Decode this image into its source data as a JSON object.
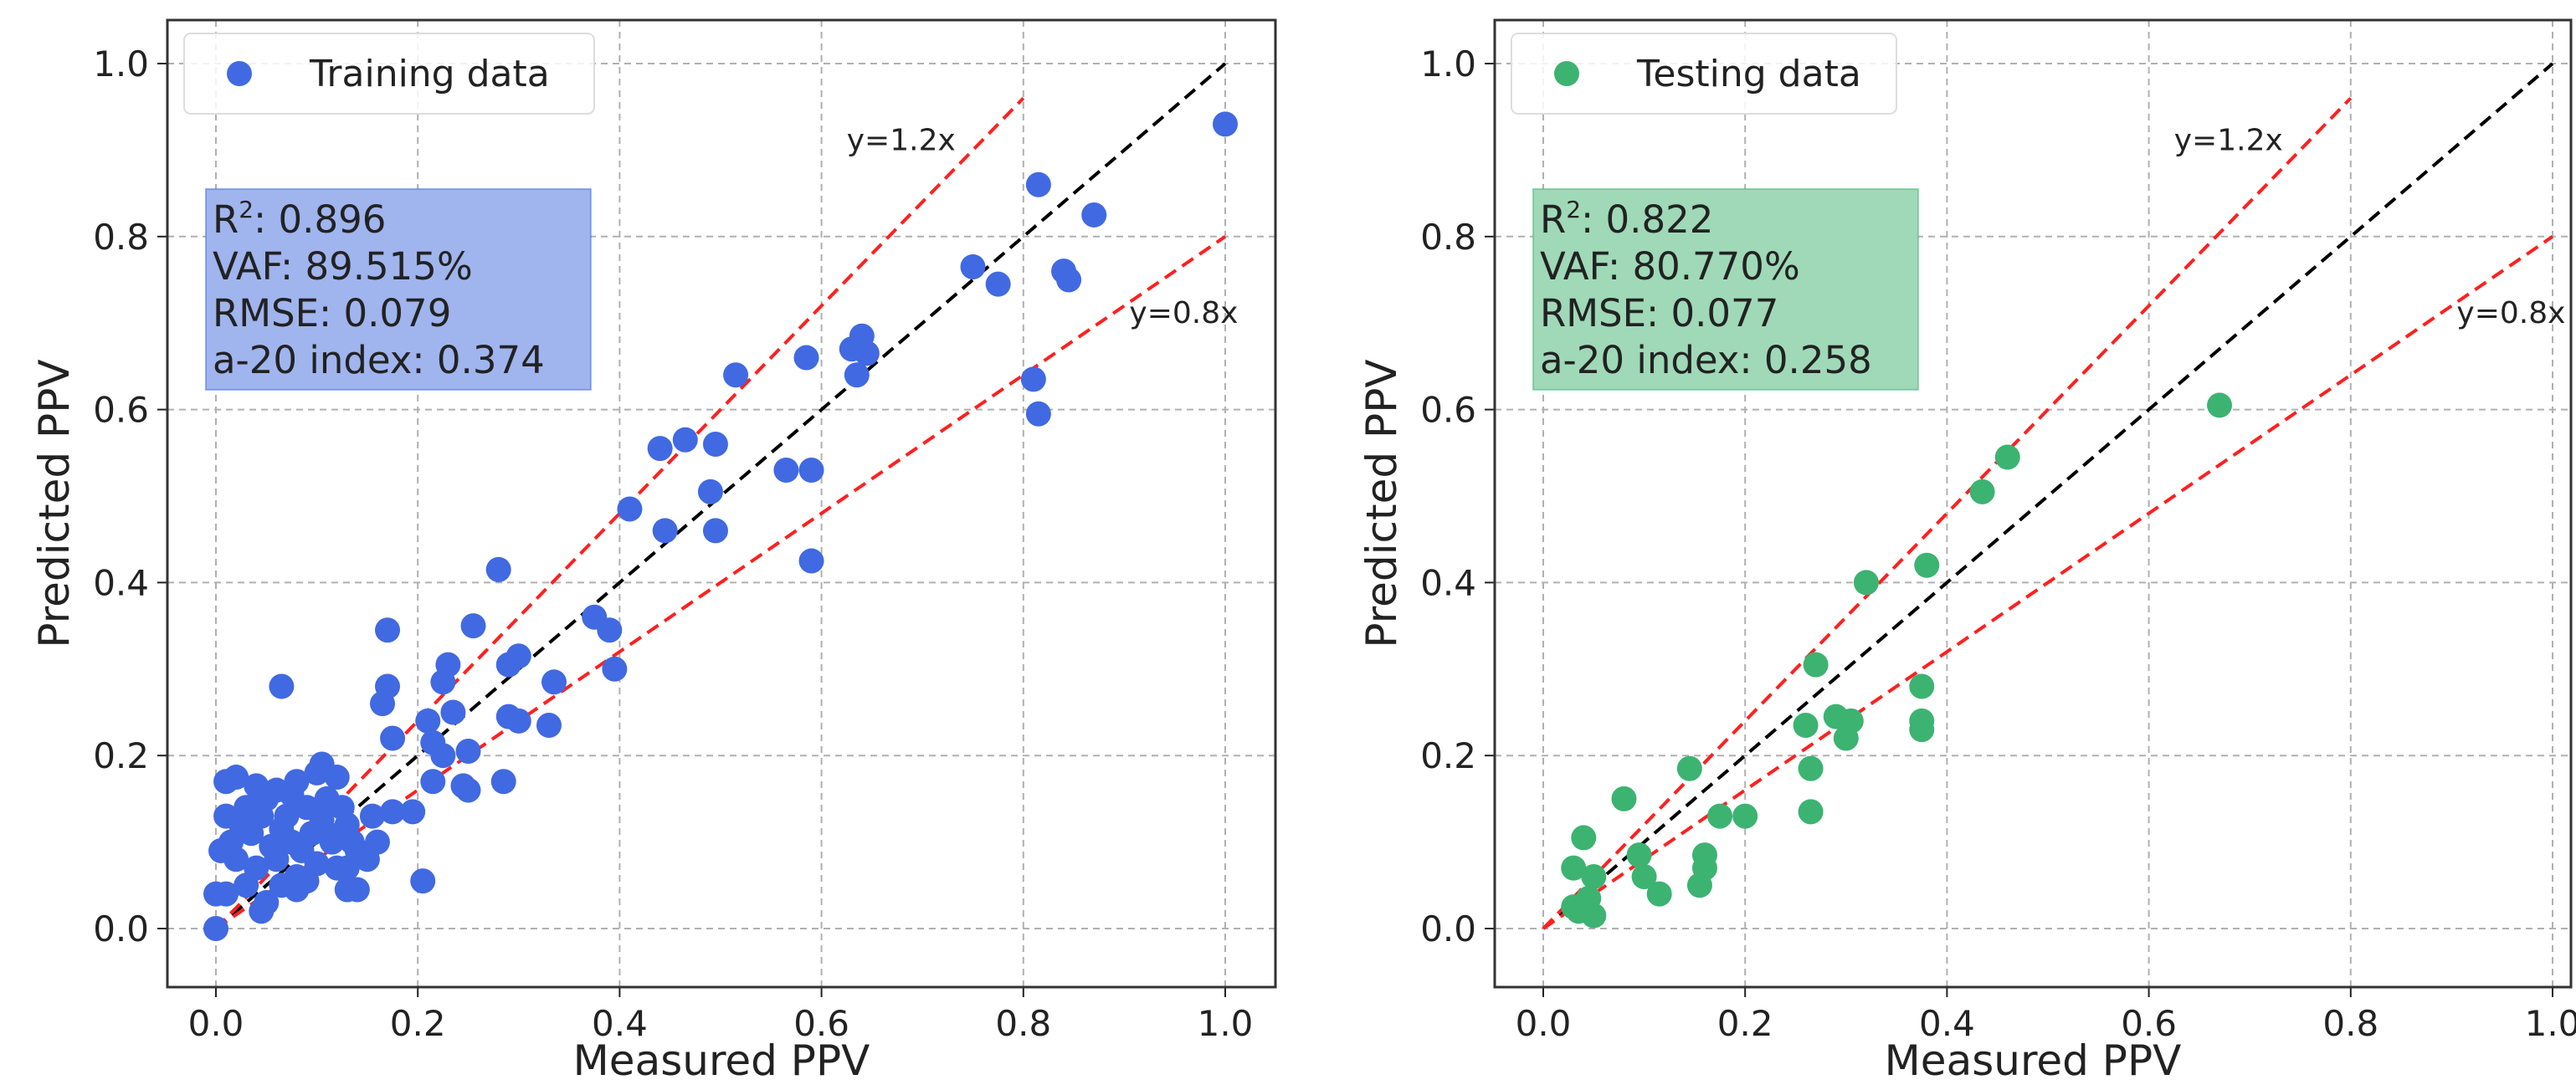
{
  "chart_data": [
    {
      "type": "scatter",
      "xlabel": "Measured PPV",
      "ylabel": "Predicted PPV",
      "xlim": [
        -0.04,
        1.05
      ],
      "ylim": [
        -0.07,
        1.07
      ],
      "xticks": [
        "0.0",
        "0.2",
        "0.4",
        "0.6",
        "0.8",
        "1.0"
      ],
      "yticks": [
        "0.0",
        "0.2",
        "0.4",
        "0.6",
        "0.8",
        "1.0"
      ],
      "grid": true,
      "legend": {
        "label": "Training data",
        "placement": "top-left"
      },
      "color": "#4169e1",
      "stats": {
        "r2_label": "R",
        "r2_sup": "2",
        "r2": ": 0.896",
        "vaf": "VAF: 89.515%",
        "rmse": "RMSE: 0.079",
        "a20": "a-20 index: 0.374"
      },
      "stats_box_color": "#a0b4ee",
      "reference_lines": [
        {
          "label": "",
          "slope": 1.0,
          "x_end": 1.0,
          "color": "#000000"
        },
        {
          "label": "y=1.2x",
          "slope": 1.2,
          "x_end": 0.8,
          "color": "#ff2020"
        },
        {
          "label": "y=0.8x",
          "slope": 0.8,
          "x_end": 1.0,
          "color": "#ff2020"
        }
      ],
      "points": [
        [
          1.0,
          0.93
        ],
        [
          0.815,
          0.86
        ],
        [
          0.87,
          0.825
        ],
        [
          0.75,
          0.765
        ],
        [
          0.775,
          0.745
        ],
        [
          0.84,
          0.76
        ],
        [
          0.845,
          0.75
        ],
        [
          0.81,
          0.635
        ],
        [
          0.815,
          0.595
        ],
        [
          0.64,
          0.685
        ],
        [
          0.63,
          0.67
        ],
        [
          0.645,
          0.665
        ],
        [
          0.635,
          0.64
        ],
        [
          0.585,
          0.66
        ],
        [
          0.515,
          0.64
        ],
        [
          0.44,
          0.555
        ],
        [
          0.465,
          0.565
        ],
        [
          0.495,
          0.56
        ],
        [
          0.565,
          0.53
        ],
        [
          0.59,
          0.53
        ],
        [
          0.49,
          0.505
        ],
        [
          0.41,
          0.485
        ],
        [
          0.445,
          0.46
        ],
        [
          0.495,
          0.46
        ],
        [
          0.59,
          0.425
        ],
        [
          0.28,
          0.415
        ],
        [
          0.375,
          0.36
        ],
        [
          0.39,
          0.345
        ],
        [
          0.17,
          0.345
        ],
        [
          0.255,
          0.35
        ],
        [
          0.395,
          0.3
        ],
        [
          0.3,
          0.315
        ],
        [
          0.29,
          0.305
        ],
        [
          0.23,
          0.305
        ],
        [
          0.225,
          0.285
        ],
        [
          0.335,
          0.285
        ],
        [
          0.17,
          0.28
        ],
        [
          0.065,
          0.28
        ],
        [
          0.165,
          0.26
        ],
        [
          0.235,
          0.25
        ],
        [
          0.29,
          0.245
        ],
        [
          0.3,
          0.24
        ],
        [
          0.33,
          0.235
        ],
        [
          0.21,
          0.24
        ],
        [
          0.175,
          0.22
        ],
        [
          0.215,
          0.215
        ],
        [
          0.225,
          0.2
        ],
        [
          0.25,
          0.205
        ],
        [
          0.215,
          0.17
        ],
        [
          0.245,
          0.165
        ],
        [
          0.25,
          0.16
        ],
        [
          0.285,
          0.17
        ],
        [
          0.195,
          0.135
        ],
        [
          0.175,
          0.135
        ],
        [
          0.205,
          0.055
        ],
        [
          0.13,
          0.07
        ],
        [
          0.13,
          0.045
        ],
        [
          0.14,
          0.045
        ],
        [
          0.0,
          0.0
        ],
        [
          0.01,
          0.17
        ],
        [
          0.02,
          0.175
        ],
        [
          0.04,
          0.165
        ],
        [
          0.06,
          0.16
        ],
        [
          0.08,
          0.17
        ],
        [
          0.1,
          0.18
        ],
        [
          0.105,
          0.19
        ],
        [
          0.12,
          0.175
        ],
        [
          0.01,
          0.13
        ],
        [
          0.03,
          0.14
        ],
        [
          0.05,
          0.15
        ],
        [
          0.07,
          0.13
        ],
        [
          0.09,
          0.14
        ],
        [
          0.11,
          0.15
        ],
        [
          0.13,
          0.12
        ],
        [
          0.015,
          0.1
        ],
        [
          0.035,
          0.11
        ],
        [
          0.055,
          0.095
        ],
        [
          0.075,
          0.1
        ],
        [
          0.095,
          0.11
        ],
        [
          0.115,
          0.1
        ],
        [
          0.14,
          0.09
        ],
        [
          0.02,
          0.08
        ],
        [
          0.04,
          0.07
        ],
        [
          0.06,
          0.08
        ],
        [
          0.08,
          0.06
        ],
        [
          0.1,
          0.075
        ],
        [
          0.12,
          0.07
        ],
        [
          0.16,
          0.1
        ],
        [
          0.01,
          0.04
        ],
        [
          0.03,
          0.05
        ],
        [
          0.05,
          0.03
        ],
        [
          0.065,
          0.05
        ],
        [
          0.08,
          0.045
        ],
        [
          0.045,
          0.02
        ],
        [
          0.09,
          0.055
        ],
        [
          0.025,
          0.12
        ],
        [
          0.065,
          0.115
        ],
        [
          0.085,
          0.09
        ],
        [
          0.105,
          0.125
        ],
        [
          0.125,
          0.14
        ],
        [
          0.155,
          0.13
        ],
        [
          0.0,
          0.04
        ],
        [
          0.005,
          0.09
        ],
        [
          0.045,
          0.13
        ],
        [
          0.075,
          0.155
        ],
        [
          0.11,
          0.11
        ],
        [
          0.135,
          0.1
        ],
        [
          0.15,
          0.08
        ]
      ]
    },
    {
      "type": "scatter",
      "xlabel": "Measured PPV",
      "ylabel": "Predicted PPV",
      "xlim": [
        -0.04,
        1.05
      ],
      "ylim": [
        -0.07,
        1.07
      ],
      "xticks": [
        "0.0",
        "0.2",
        "0.4",
        "0.6",
        "0.8",
        "1.0"
      ],
      "yticks": [
        "0.0",
        "0.2",
        "0.4",
        "0.6",
        "0.8",
        "1.0"
      ],
      "grid": true,
      "legend": {
        "label": "Testing data",
        "placement": "top-left"
      },
      "color": "#3cb371",
      "stats": {
        "r2_label": "R",
        "r2_sup": "2",
        "r2": ": 0.822",
        "vaf": "VAF: 80.770%",
        "rmse": "RMSE: 0.077",
        "a20": "a-20 index: 0.258"
      },
      "stats_box_color": "#9fd9b8",
      "reference_lines": [
        {
          "label": "",
          "slope": 1.0,
          "x_end": 1.0,
          "color": "#000000"
        },
        {
          "label": "y=1.2x",
          "slope": 1.2,
          "x_end": 0.8,
          "color": "#ff2020"
        },
        {
          "label": "y=0.8x",
          "slope": 0.8,
          "x_end": 1.0,
          "color": "#ff2020"
        }
      ],
      "points": [
        [
          0.67,
          0.605
        ],
        [
          0.46,
          0.545
        ],
        [
          0.435,
          0.505
        ],
        [
          0.32,
          0.4
        ],
        [
          0.38,
          0.42
        ],
        [
          0.27,
          0.305
        ],
        [
          0.375,
          0.28
        ],
        [
          0.29,
          0.245
        ],
        [
          0.305,
          0.24
        ],
        [
          0.3,
          0.22
        ],
        [
          0.26,
          0.235
        ],
        [
          0.375,
          0.24
        ],
        [
          0.375,
          0.23
        ],
        [
          0.265,
          0.185
        ],
        [
          0.145,
          0.185
        ],
        [
          0.2,
          0.13
        ],
        [
          0.175,
          0.13
        ],
        [
          0.265,
          0.135
        ],
        [
          0.08,
          0.15
        ],
        [
          0.04,
          0.105
        ],
        [
          0.16,
          0.085
        ],
        [
          0.16,
          0.07
        ],
        [
          0.155,
          0.05
        ],
        [
          0.095,
          0.085
        ],
        [
          0.1,
          0.06
        ],
        [
          0.115,
          0.04
        ],
        [
          0.03,
          0.07
        ],
        [
          0.05,
          0.06
        ],
        [
          0.045,
          0.035
        ],
        [
          0.035,
          0.02
        ],
        [
          0.05,
          0.015
        ],
        [
          0.03,
          0.025
        ]
      ]
    }
  ]
}
